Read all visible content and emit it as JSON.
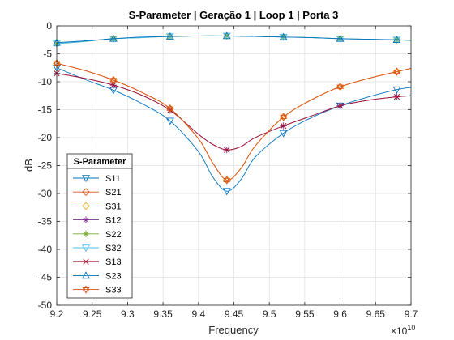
{
  "chart_data": {
    "type": "line",
    "title": "S-Parameter  |  Geração 1  |  Loop 1  |  Porta 3",
    "xlabel": "Frequency",
    "ylabel": "dB",
    "x_exponent_label": "×10",
    "x_exponent_power": "10",
    "xlim": [
      9.2,
      9.7
    ],
    "ylim": [
      -50,
      0
    ],
    "xticks": [
      9.2,
      9.25,
      9.3,
      9.35,
      9.4,
      9.45,
      9.5,
      9.55,
      9.6,
      9.65,
      9.7
    ],
    "xtick_labels": [
      "9.2",
      "9.25",
      "9.3",
      "9.35",
      "9.4",
      "9.45",
      "9.5",
      "9.55",
      "9.6",
      "9.65",
      "9.7"
    ],
    "yticks": [
      -50,
      -45,
      -40,
      -35,
      -30,
      -25,
      -20,
      -15,
      -10,
      -5,
      0
    ],
    "ytick_labels": [
      "-50",
      "-45",
      "-40",
      "-35",
      "-30",
      "-25",
      "-20",
      "-15",
      "-10",
      "-5",
      "0"
    ],
    "grid": true,
    "legend_title": "S-Parameter",
    "legend_location": "bottom-left",
    "marker_x": [
      9.2,
      9.28,
      9.36,
      9.44,
      9.52,
      9.6,
      9.68
    ],
    "series": [
      {
        "name": "S11",
        "color": "#0072BD",
        "marker": "triangle-down",
        "x": [
          9.2,
          9.24,
          9.28,
          9.32,
          9.36,
          9.4,
          9.42,
          9.44,
          9.46,
          9.48,
          9.52,
          9.56,
          9.6,
          9.64,
          9.68,
          9.7
        ],
        "y": [
          -7.5,
          -9.6,
          -11.5,
          -13.9,
          -17.0,
          -22.5,
          -27.0,
          -29.6,
          -27.5,
          -23.5,
          -19.2,
          -16.4,
          -14.3,
          -12.7,
          -11.4,
          -11.0
        ]
      },
      {
        "name": "S21",
        "color": "#D95319",
        "marker": "diamond",
        "x": [
          9.2,
          9.24,
          9.28,
          9.32,
          9.36,
          9.4,
          9.42,
          9.44,
          9.46,
          9.48,
          9.52,
          9.56,
          9.6,
          9.64,
          9.68,
          9.7
        ],
        "y": [
          -6.7,
          -8.0,
          -9.7,
          -11.9,
          -14.8,
          -20.2,
          -24.5,
          -27.6,
          -25.5,
          -21.5,
          -16.3,
          -13.2,
          -10.9,
          -9.4,
          -8.2,
          -7.6
        ]
      },
      {
        "name": "S31",
        "color": "#EDB120",
        "marker": "diamond",
        "x": [
          9.2,
          9.24,
          9.28,
          9.32,
          9.36,
          9.4,
          9.42,
          9.44,
          9.46,
          9.48,
          9.52,
          9.56,
          9.6,
          9.64,
          9.68,
          9.7
        ],
        "y": [
          -6.7,
          -8.0,
          -9.7,
          -11.9,
          -14.8,
          -20.2,
          -24.5,
          -27.6,
          -25.5,
          -21.5,
          -16.3,
          -13.2,
          -10.9,
          -9.4,
          -8.2,
          -7.6
        ]
      },
      {
        "name": "S12",
        "color": "#7E2F8E",
        "marker": "asterisk",
        "x": [
          9.2,
          9.24,
          9.28,
          9.32,
          9.36,
          9.4,
          9.42,
          9.44,
          9.46,
          9.48,
          9.52,
          9.56,
          9.6,
          9.64,
          9.68,
          9.7
        ],
        "y": [
          -8.5,
          -9.4,
          -10.6,
          -12.4,
          -15.1,
          -19.4,
          -21.2,
          -22.2,
          -21.6,
          -20.0,
          -17.9,
          -16.1,
          -14.3,
          -13.3,
          -12.7,
          -12.5
        ]
      },
      {
        "name": "S22",
        "color": "#77AC30",
        "marker": "asterisk",
        "x": [
          9.2,
          9.24,
          9.28,
          9.32,
          9.36,
          9.4,
          9.44,
          9.48,
          9.52,
          9.56,
          9.6,
          9.64,
          9.68,
          9.7
        ],
        "y": [
          -3.2,
          -2.8,
          -2.3,
          -2.1,
          -1.9,
          -1.8,
          -1.8,
          -1.9,
          -2.0,
          -2.1,
          -2.3,
          -2.4,
          -2.5,
          -2.6
        ]
      },
      {
        "name": "S32",
        "color": "#4DBEEE",
        "marker": "triangle-down",
        "x": [
          9.2,
          9.24,
          9.28,
          9.32,
          9.36,
          9.4,
          9.44,
          9.48,
          9.52,
          9.56,
          9.6,
          9.64,
          9.68,
          9.7
        ],
        "y": [
          -3.2,
          -2.8,
          -2.3,
          -2.1,
          -1.9,
          -1.8,
          -1.8,
          -1.9,
          -2.0,
          -2.1,
          -2.3,
          -2.4,
          -2.5,
          -2.6
        ]
      },
      {
        "name": "S13",
        "color": "#A2142F",
        "marker": "x",
        "x": [
          9.2,
          9.24,
          9.28,
          9.32,
          9.36,
          9.4,
          9.42,
          9.44,
          9.46,
          9.48,
          9.52,
          9.56,
          9.6,
          9.64,
          9.68,
          9.7
        ],
        "y": [
          -8.5,
          -9.4,
          -10.6,
          -12.4,
          -15.1,
          -19.4,
          -21.2,
          -22.2,
          -21.6,
          -20.0,
          -17.9,
          -16.1,
          -14.3,
          -13.3,
          -12.7,
          -12.5
        ]
      },
      {
        "name": "S23",
        "color": "#0072BD",
        "marker": "triangle-up",
        "x": [
          9.2,
          9.24,
          9.28,
          9.32,
          9.36,
          9.4,
          9.44,
          9.48,
          9.52,
          9.56,
          9.6,
          9.64,
          9.68,
          9.7
        ],
        "y": [
          -3.0,
          -2.7,
          -2.3,
          -2.0,
          -1.9,
          -1.8,
          -1.8,
          -1.9,
          -2.0,
          -2.1,
          -2.3,
          -2.4,
          -2.5,
          -2.6
        ]
      },
      {
        "name": "S33",
        "color": "#D95319",
        "marker": "hexagram",
        "x": [
          9.2,
          9.24,
          9.28,
          9.32,
          9.36,
          9.4,
          9.42,
          9.44,
          9.46,
          9.48,
          9.52,
          9.56,
          9.6,
          9.64,
          9.68,
          9.7
        ],
        "y": [
          -6.7,
          -8.0,
          -9.7,
          -11.9,
          -14.8,
          -20.2,
          -24.5,
          -27.6,
          -25.5,
          -21.5,
          -16.3,
          -13.2,
          -10.9,
          -9.4,
          -8.2,
          -7.6
        ]
      }
    ]
  }
}
